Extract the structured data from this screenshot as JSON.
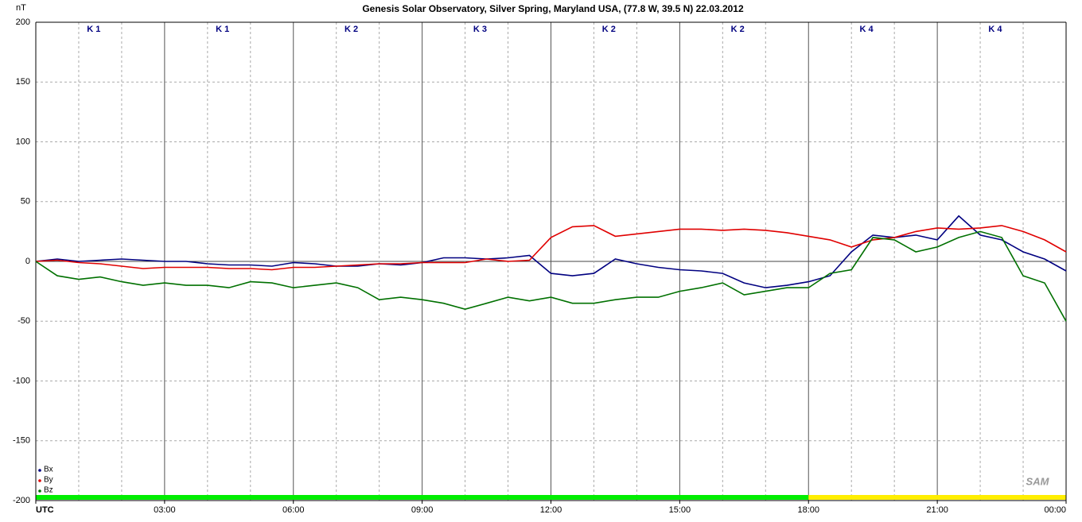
{
  "chart_data": {
    "type": "line",
    "title": "Genesis Solar Observatory, Silver Spring, Maryland USA, (77.8 W, 39.5 N)  22.03.2012",
    "y_label": "nT",
    "x": [
      0,
      0.5,
      1,
      1.5,
      2,
      2.5,
      3,
      3.5,
      4,
      4.5,
      5,
      5.5,
      6,
      6.5,
      7,
      7.5,
      8,
      8.5,
      9,
      9.5,
      10,
      10.5,
      11,
      11.5,
      12,
      12.5,
      13,
      13.5,
      14,
      14.5,
      15,
      15.5,
      16,
      16.5,
      17,
      17.5,
      18,
      18.5,
      19,
      19.5,
      20,
      20.5,
      21,
      21.5,
      22,
      22.5,
      23,
      23.5,
      24
    ],
    "series": [
      {
        "name": "Bx",
        "color": "#000080",
        "values": [
          0,
          2,
          0,
          1,
          2,
          1,
          0,
          0,
          -2,
          -3,
          -3,
          -4,
          -1,
          -2,
          -4,
          -4,
          -2,
          -3,
          -1,
          3,
          3,
          2,
          3,
          5,
          -10,
          -12,
          -10,
          2,
          -2,
          -5,
          -7,
          -8,
          -10,
          -18,
          -22,
          -20,
          -17,
          -12,
          8,
          22,
          20,
          22,
          18,
          38,
          22,
          18,
          8,
          2,
          -8
        ]
      },
      {
        "name": "By",
        "color": "#e00000",
        "values": [
          0,
          1,
          -1,
          -2,
          -4,
          -6,
          -5,
          -5,
          -5,
          -6,
          -6,
          -7,
          -5,
          -5,
          -4,
          -3,
          -2,
          -2,
          -1,
          -1,
          -1,
          2,
          0,
          1,
          20,
          29,
          30,
          21,
          23,
          25,
          27,
          27,
          26,
          27,
          26,
          24,
          21,
          18,
          12,
          18,
          20,
          25,
          28,
          27,
          28,
          30,
          25,
          18,
          8
        ]
      },
      {
        "name": "Bz",
        "color": "#007000",
        "values": [
          0,
          -12,
          -15,
          -13,
          -17,
          -20,
          -18,
          -20,
          -20,
          -22,
          -17,
          -18,
          -22,
          -20,
          -18,
          -22,
          -32,
          -30,
          -32,
          -35,
          -40,
          -35,
          -30,
          -33,
          -30,
          -35,
          -35,
          -32,
          -30,
          -30,
          -25,
          -22,
          -18,
          -28,
          -25,
          -22,
          -22,
          -10,
          -7,
          20,
          18,
          8,
          12,
          20,
          25,
          20,
          -12,
          -18,
          -50
        ]
      }
    ],
    "xlim": [
      0,
      24
    ],
    "xticks": [
      {
        "value": 0,
        "label": "UTC"
      },
      {
        "value": 3,
        "label": "03:00"
      },
      {
        "value": 6,
        "label": "06:00"
      },
      {
        "value": 9,
        "label": "09:00"
      },
      {
        "value": 12,
        "label": "12:00"
      },
      {
        "value": 15,
        "label": "15:00"
      },
      {
        "value": 18,
        "label": "18:00"
      },
      {
        "value": 21,
        "label": "21:00"
      },
      {
        "value": 24,
        "label": "00:00"
      }
    ],
    "xminorticks": [
      1,
      2,
      4,
      5,
      7,
      8,
      10,
      11,
      13,
      14,
      16,
      17,
      19,
      20,
      22,
      23
    ],
    "ylim": [
      -200,
      200
    ],
    "yticks": [
      -200,
      -150,
      -100,
      -50,
      0,
      50,
      100,
      150,
      200
    ],
    "grid": true,
    "k_index": [
      "K 1",
      "K 1",
      "K 2",
      "K 3",
      "K 2",
      "K 2",
      "K 4",
      "K 4"
    ],
    "status_bar": [
      {
        "from": 0,
        "to": 18,
        "color": "#00ee00"
      },
      {
        "from": 18,
        "to": 24,
        "color": "#ffee00"
      }
    ],
    "legend": "lower left",
    "logo": "SAM"
  }
}
